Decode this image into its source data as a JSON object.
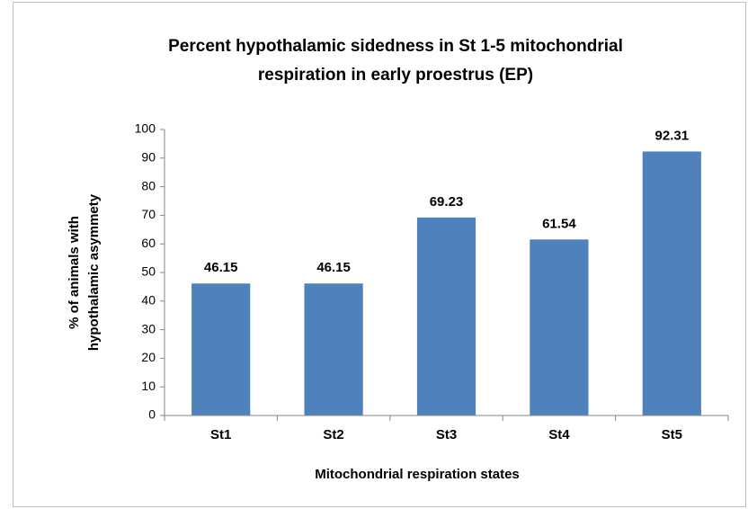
{
  "chart_data": {
    "type": "bar",
    "title": [
      "Percent hypothalamic sidedness in St 1-5 mitochondrial",
      "respiration in early proestrus (EP)"
    ],
    "y_label": [
      "% of animals with",
      "hypothalamic asymmety"
    ],
    "x_label": "Mitochondrial respiration states",
    "categories": [
      "St1",
      "St2",
      "St3",
      "St4",
      "St5"
    ],
    "values": [
      46.15,
      46.15,
      69.23,
      61.54,
      92.31
    ],
    "color": "#4f81bd",
    "ylim": [
      0,
      100
    ],
    "yticks": [
      0,
      10,
      20,
      30,
      40,
      50,
      60,
      70,
      80,
      90,
      100
    ],
    "grid": false
  }
}
